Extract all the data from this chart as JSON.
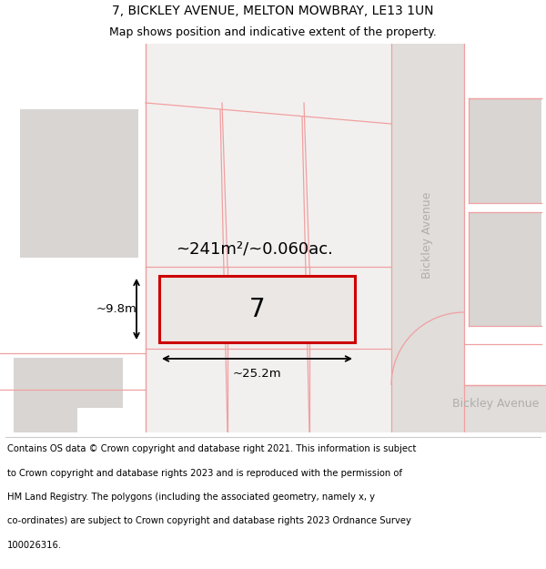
{
  "title_line1": "7, BICKLEY AVENUE, MELTON MOWBRAY, LE13 1UN",
  "title_line2": "Map shows position and indicative extent of the property.",
  "bg_color": "#ffffff",
  "map_bg": "#f2f0ef",
  "plot_border": "#cc0000",
  "grid_color": "#f0a0a0",
  "building_fill": "#d8d5d3",
  "plot_fill": "#e8e5e3",
  "road_fill": "#e0dddb",
  "area_text": "~241m²/~0.060ac.",
  "number_text": "7",
  "width_text": "~25.2m",
  "height_text": "~9.8m",
  "street_label_vert": "Bickley Avenue",
  "street_label_horiz": "Bickley Avenue",
  "title_fontsize": 10,
  "subtitle_fontsize": 9,
  "footer_fontsize": 7.2,
  "footer_lines": [
    "Contains OS data © Crown copyright and database right 2021. This information is subject",
    "to Crown copyright and database rights 2023 and is reproduced with the permission of",
    "HM Land Registry. The polygons (including the associated geometry, namely x, y",
    "co-ordinates) are subject to Crown copyright and database rights 2023 Ordnance Survey",
    "100026316."
  ]
}
